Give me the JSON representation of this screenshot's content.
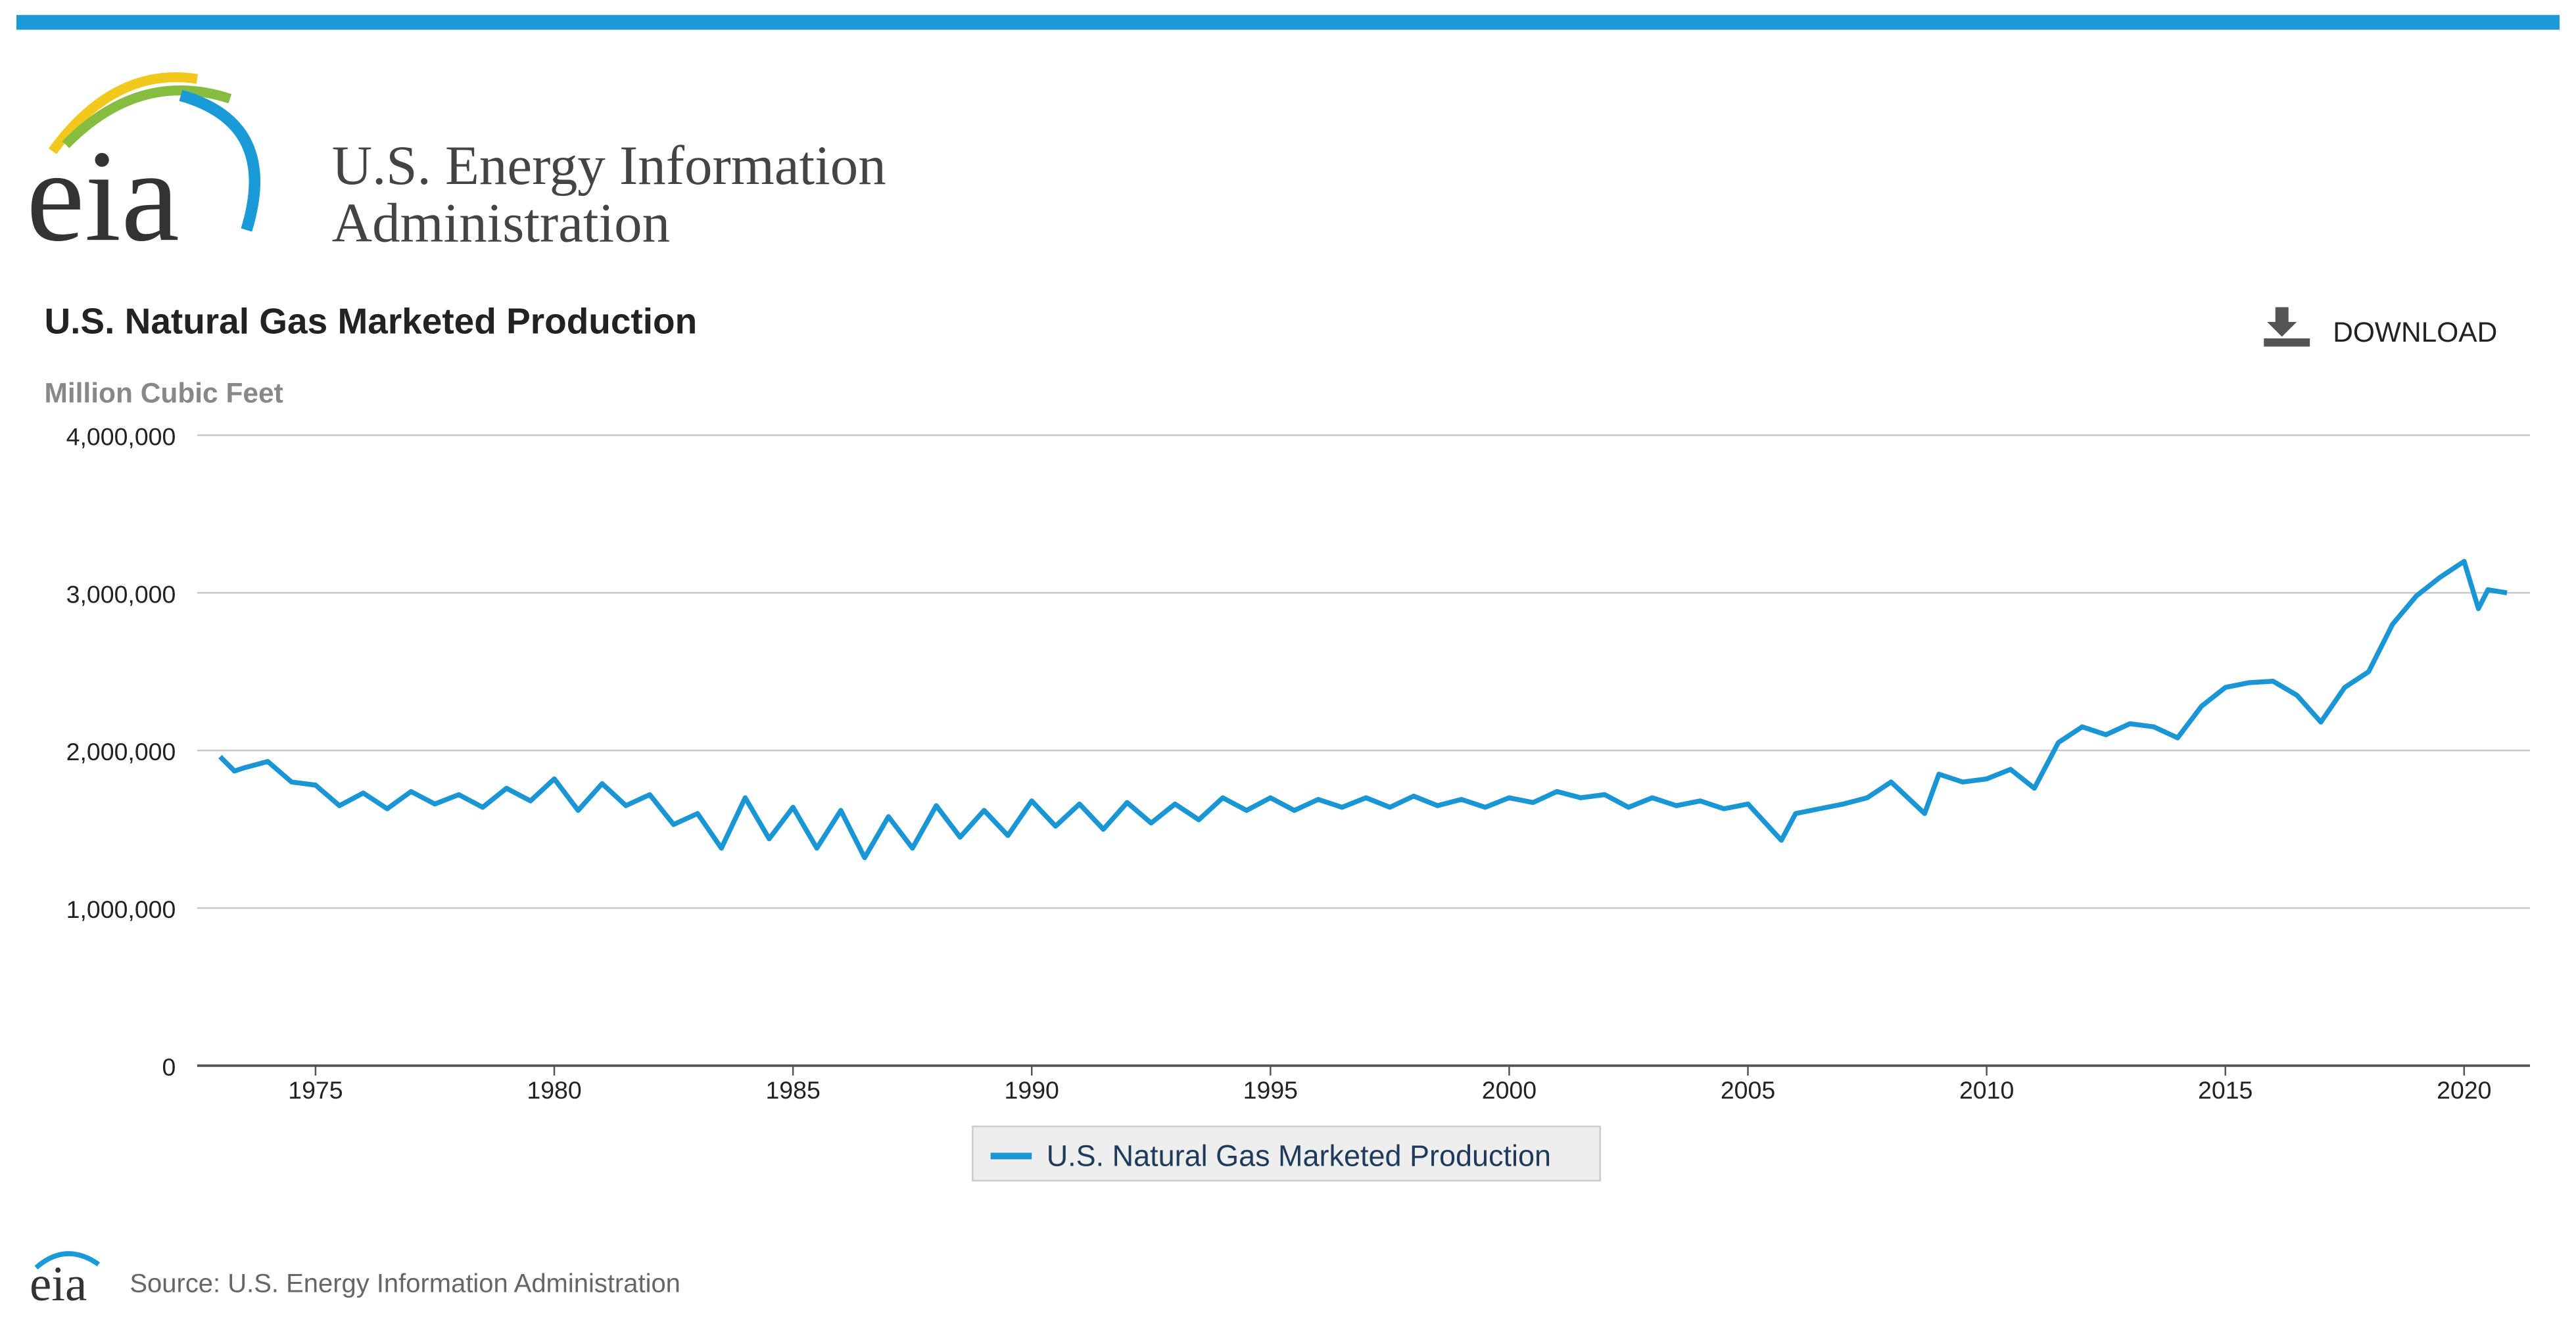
{
  "header": {
    "org_line1": "U.S. Energy Information",
    "org_line2": "Administration",
    "logo": "eia"
  },
  "download": "DOWNLOAD",
  "footer": {
    "logo": "eia",
    "source": "Source: U.S. Energy Information Administration"
  },
  "chart_data": {
    "type": "line",
    "title": "U.S. Natural Gas Marketed Production",
    "y_label": "Million Cubic Feet",
    "x": [
      1973.0,
      1973.3,
      1973.5,
      1974.0,
      1974.5,
      1975.0,
      1975.5,
      1976.0,
      1976.5,
      1977.0,
      1977.5,
      1978.0,
      1978.5,
      1979.0,
      1979.5,
      1980.0,
      1980.5,
      1981.0,
      1981.5,
      1982.0,
      1982.5,
      1983.0,
      1983.5,
      1984.0,
      1984.5,
      1985.0,
      1985.5,
      1986.0,
      1986.5,
      1987.0,
      1987.5,
      1988.0,
      1988.5,
      1989.0,
      1989.5,
      1990.0,
      1990.5,
      1991.0,
      1991.5,
      1992.0,
      1992.5,
      1993.0,
      1993.5,
      1994.0,
      1994.5,
      1995.0,
      1995.5,
      1996.0,
      1996.5,
      1997.0,
      1997.5,
      1998.0,
      1998.5,
      1999.0,
      1999.5,
      2000.0,
      2000.5,
      2001.0,
      2001.5,
      2002.0,
      2002.5,
      2003.0,
      2003.5,
      2004.0,
      2004.5,
      2005.0,
      2005.7,
      2006.0,
      2006.5,
      2007.0,
      2007.5,
      2008.0,
      2008.7,
      2009.0,
      2009.5,
      2010.0,
      2010.5,
      2011.0,
      2011.5,
      2012.0,
      2012.5,
      2013.0,
      2013.5,
      2014.0,
      2014.5,
      2015.0,
      2015.5,
      2016.0,
      2016.5,
      2017.0,
      2017.5,
      2018.0,
      2018.5,
      2019.0,
      2019.5,
      2020.0,
      2020.3,
      2020.5,
      2020.9
    ],
    "series": [
      {
        "name": "U.S. Natural Gas Marketed Production",
        "color": "#1a96d4",
        "values": [
          1960000,
          1870000,
          1890000,
          1930000,
          1800000,
          1780000,
          1650000,
          1730000,
          1630000,
          1740000,
          1660000,
          1720000,
          1640000,
          1760000,
          1680000,
          1820000,
          1620000,
          1790000,
          1650000,
          1720000,
          1530000,
          1600000,
          1380000,
          1700000,
          1440000,
          1640000,
          1380000,
          1620000,
          1320000,
          1580000,
          1380000,
          1650000,
          1450000,
          1620000,
          1460000,
          1680000,
          1520000,
          1660000,
          1500000,
          1670000,
          1540000,
          1660000,
          1560000,
          1700000,
          1620000,
          1700000,
          1620000,
          1690000,
          1640000,
          1700000,
          1640000,
          1710000,
          1650000,
          1690000,
          1640000,
          1700000,
          1670000,
          1740000,
          1700000,
          1720000,
          1640000,
          1700000,
          1650000,
          1680000,
          1630000,
          1660000,
          1430000,
          1600000,
          1630000,
          1660000,
          1700000,
          1800000,
          1600000,
          1850000,
          1800000,
          1820000,
          1880000,
          1760000,
          2050000,
          2150000,
          2100000,
          2170000,
          2150000,
          2080000,
          2280000,
          2400000,
          2430000,
          2440000,
          2350000,
          2180000,
          2400000,
          2500000,
          2800000,
          2980000,
          3100000,
          3200000,
          2900000,
          3020000,
          3000000
        ]
      }
    ],
    "xlim": [
      1972.52,
      2021.38
    ],
    "xticks": [
      1975,
      1980,
      1985,
      1990,
      1995,
      2000,
      2005,
      2010,
      2015,
      2020
    ],
    "ylim": [
      0,
      4000000
    ],
    "yticks": [
      0,
      {
        "value": 1000000,
        "label": "1,000,000"
      },
      {
        "value": 2000000,
        "label": "2,000,000"
      },
      {
        "value": 3000000,
        "label": "3,000,000"
      },
      {
        "value": 4000000,
        "label": "4,000,000"
      }
    ],
    "grid": true
  }
}
